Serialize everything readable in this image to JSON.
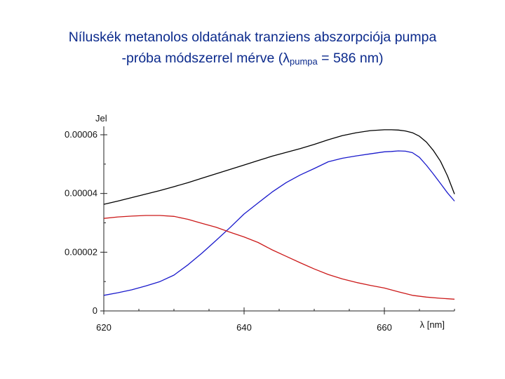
{
  "title": {
    "line1": "Níluskék metanolos oldatának tranziens abszorpciója pumpa",
    "line2_prefix": "-próba módszerrel mérve (λ",
    "line2_sub": "pumpa",
    "line2_suffix": " = 586 nm)"
  },
  "chart_data": {
    "type": "line",
    "xlabel": "λ  [nm]",
    "ylabel": "Jel",
    "xlim": [
      620,
      670
    ],
    "ylim": [
      0,
      6e-05
    ],
    "xticks": [
      620,
      640,
      660
    ],
    "xtick_labels": [
      "620",
      "640",
      "660"
    ],
    "yticks": [
      0,
      2e-05,
      4e-05,
      6e-05
    ],
    "ytick_labels": [
      "0",
      "0.00002",
      "0.00004",
      "0.00006"
    ],
    "grid": false,
    "legend": "none",
    "series": [
      {
        "color": "#000000",
        "x": [
          620,
          622,
          624,
          626,
          628,
          630,
          632,
          634,
          636,
          638,
          640,
          642,
          644,
          646,
          648,
          650,
          652,
          654,
          656,
          658,
          660,
          661,
          662,
          663,
          664,
          665,
          666,
          667,
          668,
          669,
          670
        ],
        "y": [
          3.63e-05,
          3.74e-05,
          3.86e-05,
          3.98e-05,
          4.1e-05,
          4.23e-05,
          4.37e-05,
          4.52e-05,
          4.67e-05,
          4.82e-05,
          4.97e-05,
          5.12e-05,
          5.27e-05,
          5.4e-05,
          5.53e-05,
          5.67e-05,
          5.83e-05,
          5.97e-05,
          6.07e-05,
          6.14e-05,
          6.17e-05,
          6.17e-05,
          6.16e-05,
          6.13e-05,
          6.07e-05,
          5.95e-05,
          5.75e-05,
          5.46e-05,
          5.1e-05,
          4.6e-05,
          3.98e-05
        ]
      },
      {
        "color": "#1a1acc",
        "x": [
          620,
          622,
          624,
          626,
          628,
          630,
          632,
          634,
          636,
          638,
          640,
          642,
          644,
          646,
          648,
          650,
          652,
          654,
          656,
          658,
          660,
          661,
          662,
          663,
          664,
          665,
          666,
          667,
          668,
          669,
          670
        ],
        "y": [
          5.3e-06,
          6.2e-06,
          7.2e-06,
          8.5e-06,
          1e-05,
          1.22e-05,
          1.57e-05,
          1.97e-05,
          2.4e-05,
          2.84e-05,
          3.3e-05,
          3.68e-05,
          4.05e-05,
          4.37e-05,
          4.63e-05,
          4.85e-05,
          5.08e-05,
          5.2e-05,
          5.28e-05,
          5.35e-05,
          5.42e-05,
          5.43e-05,
          5.45e-05,
          5.44e-05,
          5.39e-05,
          5.23e-05,
          4.96e-05,
          4.66e-05,
          4.34e-05,
          4.02e-05,
          3.74e-05
        ]
      },
      {
        "color": "#cc1a1a",
        "x": [
          620,
          622,
          624,
          626,
          628,
          630,
          632,
          634,
          636,
          638,
          640,
          642,
          644,
          646,
          648,
          650,
          652,
          654,
          656,
          658,
          660,
          662,
          664,
          666,
          668,
          670
        ],
        "y": [
          3.15e-05,
          3.2e-05,
          3.23e-05,
          3.25e-05,
          3.25e-05,
          3.22e-05,
          3.12e-05,
          2.98e-05,
          2.85e-05,
          2.68e-05,
          2.52e-05,
          2.33e-05,
          2.08e-05,
          1.86e-05,
          1.64e-05,
          1.43e-05,
          1.24e-05,
          1.09e-05,
          9.7e-06,
          8.7e-06,
          7.8e-06,
          6.5e-06,
          5.3e-06,
          4.7e-06,
          4.3e-06,
          4e-06
        ]
      }
    ]
  }
}
